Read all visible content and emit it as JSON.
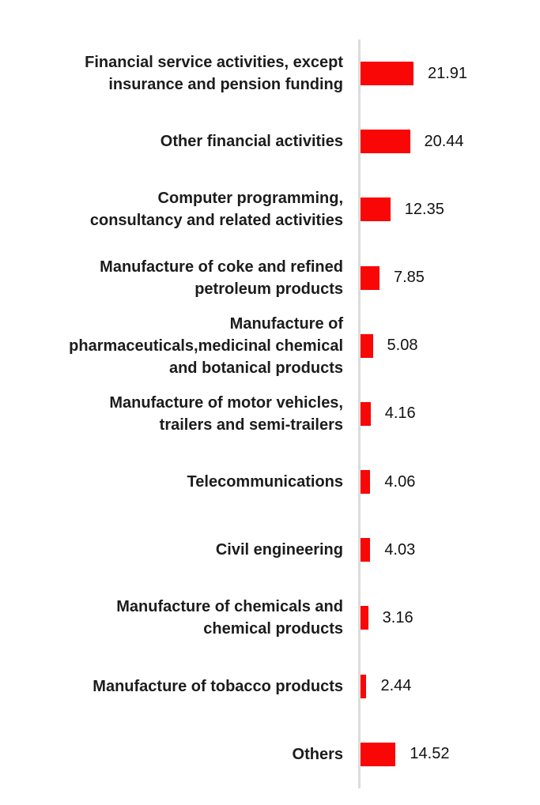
{
  "chart_data": {
    "type": "bar",
    "orientation": "horizontal",
    "title": "",
    "xlabel": "",
    "ylabel": "",
    "grid": false,
    "legend": false,
    "xlim": [
      0,
      21.91
    ],
    "categories": [
      "Financial service activities, except\ninsurance and pension funding",
      "Other financial activities",
      "Computer programming,\nconsultancy and related activities",
      "Manufacture of coke and refined\npetroleum products",
      "Manufacture of\npharmaceuticals,medicinal chemical\nand botanical products",
      "Manufacture of motor vehicles,\ntrailers and semi-trailers",
      "Telecommunications",
      "Civil engineering",
      "Manufacture of chemicals and\nchemical products",
      "Manufacture of tobacco products",
      "Others"
    ],
    "values": [
      21.91,
      20.44,
      12.35,
      7.85,
      5.08,
      4.16,
      4.06,
      4.03,
      3.16,
      2.44,
      14.52
    ],
    "value_labels": [
      "21.91",
      "20.44",
      "12.35",
      "7.85",
      "5.08",
      "4.16",
      "4.06",
      "4.03",
      "3.16",
      "2.44",
      "14.52"
    ],
    "colors": {
      "bar": "#f90606",
      "axis_line": "#dcdcdc",
      "label_text": "#1c1c1c",
      "value_text": "#111111",
      "background": "#ffffff"
    }
  }
}
